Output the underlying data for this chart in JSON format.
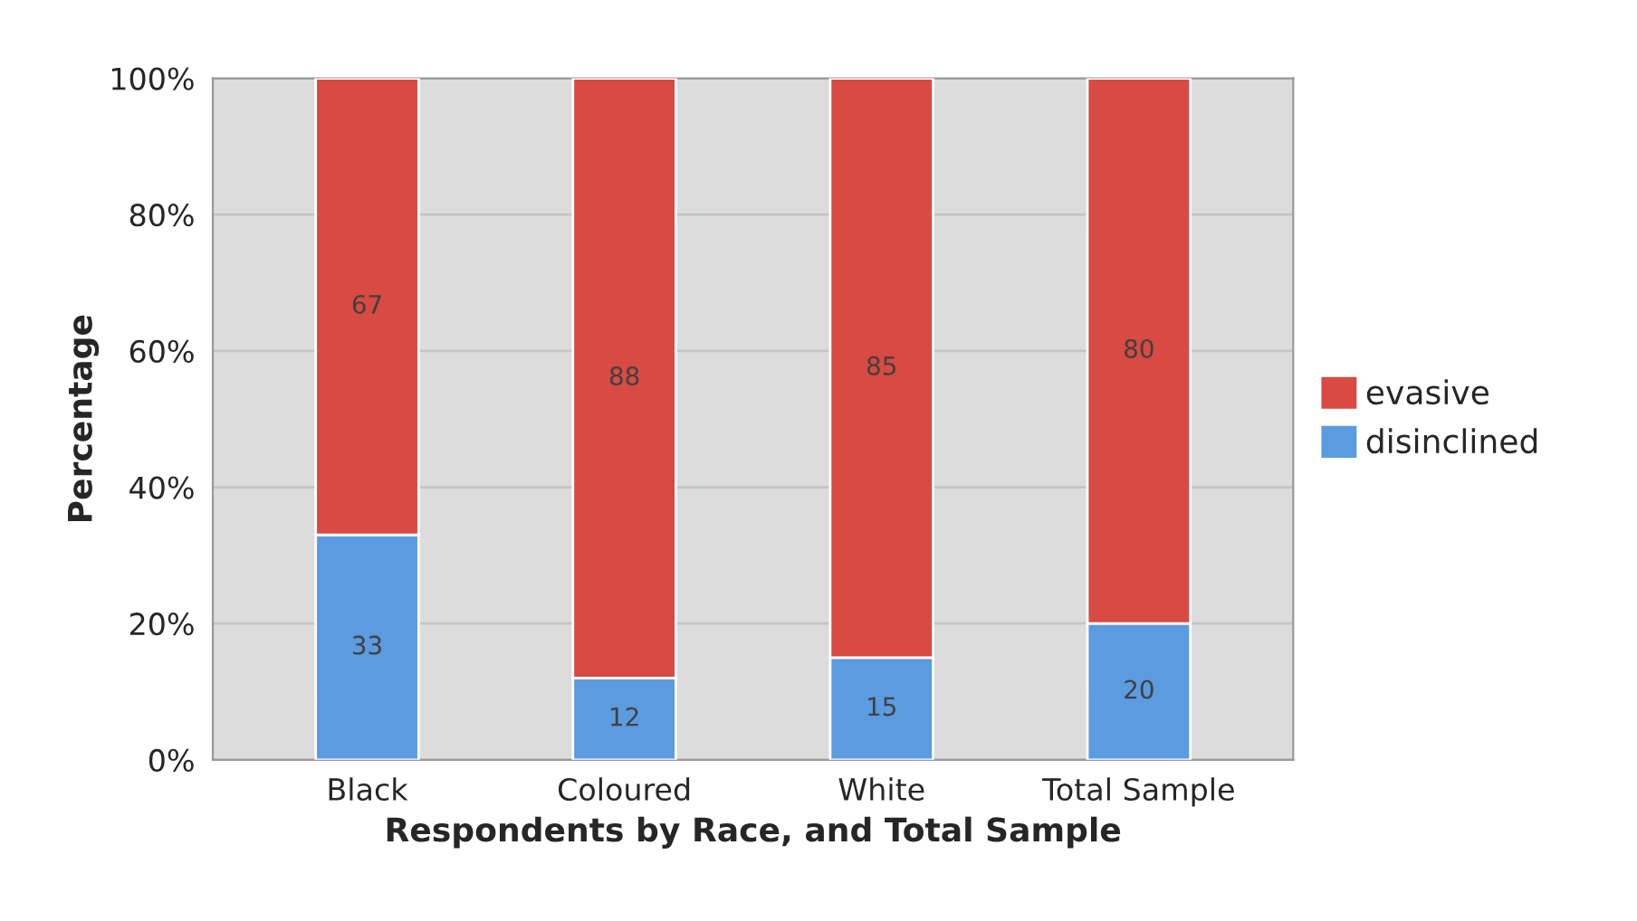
{
  "chart_data": {
    "type": "bar",
    "stacked": true,
    "xlabel": "Respondents by Race, and Total Sample",
    "ylabel": "Percentage",
    "categories": [
      "Black",
      "Coloured",
      "White",
      "Total Sample"
    ],
    "series": [
      {
        "name": "disinclined",
        "color": "#5b9be0",
        "values": [
          33,
          12,
          15,
          20
        ]
      },
      {
        "name": "evasive",
        "color": "#d84a42",
        "values": [
          67,
          88,
          85,
          80
        ]
      }
    ],
    "ylim": [
      0,
      100
    ],
    "yticks": [
      {
        "value": 0,
        "label": "0%"
      },
      {
        "value": 20,
        "label": "20%"
      },
      {
        "value": 40,
        "label": "40%"
      },
      {
        "value": 60,
        "label": "60%"
      },
      {
        "value": 80,
        "label": "80%"
      },
      {
        "value": 100,
        "label": "100%"
      }
    ],
    "grid": "y",
    "legend": "right",
    "data_labels": true
  }
}
